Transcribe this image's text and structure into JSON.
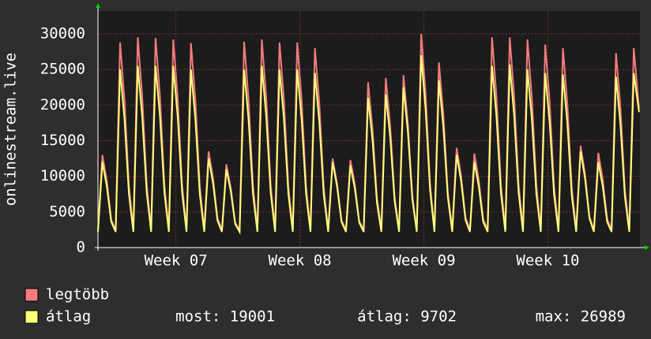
{
  "chart_data": {
    "type": "line",
    "ylabel": "onlinestream.live",
    "x": [
      0,
      0.25,
      0.5,
      0.75,
      1,
      1.25,
      1.5,
      1.75,
      2,
      2.25,
      2.5,
      2.75,
      3,
      3.25,
      3.5,
      3.75,
      4,
      4.25,
      4.5,
      4.75,
      5,
      5.25,
      5.5,
      5.75,
      6,
      6.25,
      6.5,
      6.75,
      7,
      7.25,
      7.5,
      7.75,
      8,
      8.25,
      8.5,
      8.75,
      9,
      9.25,
      9.5,
      9.75,
      10,
      10.25,
      10.5,
      10.75,
      11,
      11.25,
      11.5,
      11.75,
      12,
      12.25,
      12.5,
      12.75,
      13,
      13.25,
      13.5,
      13.75,
      14,
      14.25,
      14.5,
      14.75,
      15,
      15.25,
      15.5,
      15.75,
      16,
      16.25,
      16.5,
      16.75,
      17,
      17.25,
      17.5,
      17.75,
      18,
      18.25,
      18.5,
      18.75,
      19,
      19.25,
      19.5,
      19.75,
      20,
      20.25,
      20.5,
      20.75,
      21,
      21.25,
      21.5,
      21.75,
      22,
      22.25,
      22.5,
      22.75,
      23,
      23.25,
      23.5,
      23.75,
      24,
      24.25,
      24.5,
      24.75,
      25,
      25.25,
      25.5,
      25.75,
      26,
      26.25,
      26.5,
      26.75,
      27,
      27.25,
      27.5,
      27.75,
      28,
      28.25,
      28.5,
      28.75,
      29,
      29.25,
      29.5,
      29.75,
      30,
      30.25,
      30.55
    ],
    "series": [
      {
        "name": "legtöbb",
        "color": "#f47c7c",
        "values": [
          2500,
          13000,
          9400,
          3900,
          2500,
          28800,
          20700,
          8600,
          2500,
          29500,
          21200,
          8900,
          2500,
          29400,
          21200,
          8800,
          2500,
          29200,
          21000,
          8800,
          2500,
          28700,
          20700,
          8600,
          2500,
          13500,
          9700,
          4100,
          2500,
          11700,
          8400,
          3500,
          2500,
          28900,
          20800,
          8700,
          2500,
          29200,
          21000,
          8800,
          2500,
          28800,
          20700,
          8600,
          2500,
          28800,
          20700,
          8600,
          2500,
          28000,
          20200,
          8400,
          2500,
          12500,
          9000,
          3800,
          2500,
          12300,
          8900,
          3700,
          2500,
          23200,
          16700,
          7000,
          2500,
          23800,
          17100,
          7100,
          2500,
          24200,
          17400,
          7300,
          2500,
          30000,
          21600,
          9000,
          2500,
          26000,
          18700,
          7800,
          2500,
          14000,
          10100,
          4200,
          2500,
          13200,
          9500,
          4000,
          2500,
          29500,
          21200,
          8900,
          2500,
          29500,
          21200,
          8900,
          2500,
          29200,
          21000,
          8800,
          2500,
          28500,
          20500,
          8600,
          2500,
          28000,
          20200,
          8400,
          2500,
          14300,
          10300,
          4300,
          2500,
          13300,
          9600,
          4000,
          2500,
          27300,
          19700,
          8200,
          2500,
          28000,
          19500
        ]
      },
      {
        "name": "átlag",
        "color": "#ffff7a",
        "values": [
          2200,
          12000,
          8600,
          3600,
          2200,
          25000,
          18000,
          7500,
          2200,
          25500,
          18400,
          7700,
          2200,
          25500,
          18400,
          7700,
          2200,
          25500,
          18400,
          7700,
          2200,
          25000,
          18000,
          7500,
          2200,
          12500,
          9000,
          3800,
          2200,
          11000,
          7900,
          3300,
          2200,
          25000,
          18000,
          7500,
          2200,
          25500,
          18400,
          7700,
          2200,
          25000,
          18000,
          7500,
          2200,
          25000,
          18000,
          7500,
          2200,
          24500,
          17600,
          7400,
          2200,
          12000,
          8600,
          3600,
          2200,
          11500,
          8300,
          3500,
          2200,
          21000,
          15100,
          6300,
          2200,
          21500,
          15500,
          6500,
          2200,
          22500,
          16200,
          6800,
          2200,
          27000,
          19400,
          8100,
          2200,
          23500,
          16900,
          7100,
          2200,
          13000,
          9400,
          3900,
          2200,
          12000,
          8600,
          3600,
          2200,
          25500,
          18400,
          7700,
          2200,
          25700,
          18500,
          7700,
          2200,
          25000,
          18000,
          7500,
          2200,
          24500,
          17600,
          7400,
          2200,
          24300,
          17500,
          7300,
          2200,
          13500,
          9700,
          4100,
          2200,
          12000,
          8600,
          3600,
          2200,
          24000,
          17300,
          7200,
          2200,
          24500,
          19001
        ]
      }
    ],
    "stats": [
      "most: 19001",
      "átlag: 9702",
      "max: 26989"
    ],
    "xlim": [
      0,
      30.6
    ],
    "xticks": [
      {
        "value": 4.4,
        "label": "Week 07"
      },
      {
        "value": 11.4,
        "label": "Week 08"
      },
      {
        "value": 18.4,
        "label": "Week 09"
      },
      {
        "value": 25.4,
        "label": "Week 10"
      }
    ],
    "ylim": [
      0,
      33200
    ],
    "yticks": [
      0,
      5000,
      10000,
      15000,
      20000,
      25000,
      30000
    ],
    "grid": true
  }
}
